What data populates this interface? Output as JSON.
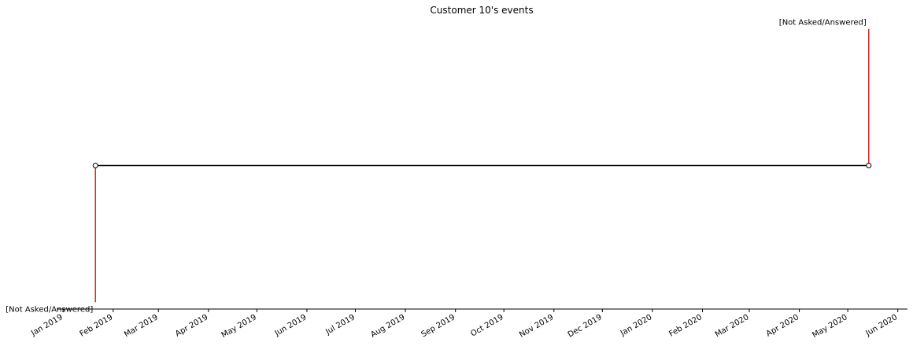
{
  "chart_data": {
    "type": "timeline",
    "title": "Customer 10's events",
    "xlabel": "",
    "ylabel": "",
    "x_axis": {
      "type": "date",
      "range": [
        "2018-12-28",
        "2020-06-07"
      ],
      "ticks": [
        {
          "date": "2019-01-01",
          "label": "Jan 2019"
        },
        {
          "date": "2019-02-01",
          "label": "Feb 2019"
        },
        {
          "date": "2019-03-01",
          "label": "Mar 2019"
        },
        {
          "date": "2019-04-01",
          "label": "Apr 2019"
        },
        {
          "date": "2019-05-01",
          "label": "May 2019"
        },
        {
          "date": "2019-06-01",
          "label": "Jun 2019"
        },
        {
          "date": "2019-07-01",
          "label": "Jul 2019"
        },
        {
          "date": "2019-08-01",
          "label": "Aug 2019"
        },
        {
          "date": "2019-09-01",
          "label": "Sep 2019"
        },
        {
          "date": "2019-10-01",
          "label": "Oct 2019"
        },
        {
          "date": "2019-11-01",
          "label": "Nov 2019"
        },
        {
          "date": "2019-12-01",
          "label": "Dec 2019"
        },
        {
          "date": "2020-01-01",
          "label": "Jan 2020"
        },
        {
          "date": "2020-02-01",
          "label": "Feb 2020"
        },
        {
          "date": "2020-03-01",
          "label": "Mar 2020"
        },
        {
          "date": "2020-04-01",
          "label": "Apr 2020"
        },
        {
          "date": "2020-05-01",
          "label": "May 2020"
        },
        {
          "date": "2020-06-01",
          "label": "Jun 2020"
        }
      ],
      "label_rotation": -30
    },
    "y_axis": {
      "visible": false,
      "range": [
        -1.05,
        1.05
      ]
    },
    "grid": false,
    "legend": "none",
    "events": [
      {
        "date": "2019-01-21",
        "level": -1,
        "label": "[Not Asked/Answered]"
      },
      {
        "date": "2020-05-14",
        "level": 1,
        "label": "[Not Asked/Answered]"
      }
    ],
    "colors": {
      "stem": "#d62728",
      "baseline": "#000000",
      "marker_fill": "#ffffff",
      "marker_edge": "#000000",
      "axis": "#000000"
    }
  }
}
